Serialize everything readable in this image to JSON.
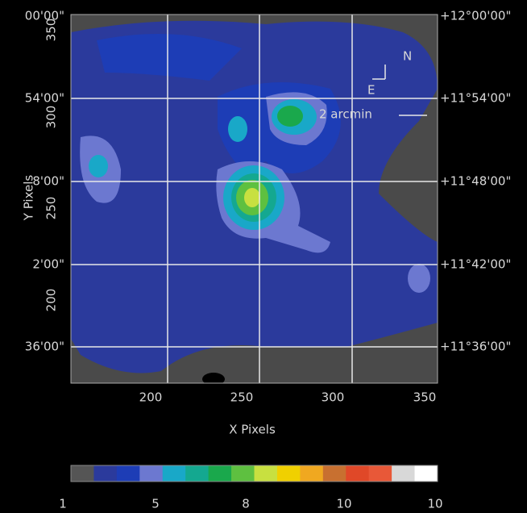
{
  "x_axis": {
    "label": "X Pixels",
    "ticks": [
      "200",
      "250",
      "300",
      "350"
    ]
  },
  "y_axis": {
    "label": "Y Pixels",
    "ticks": [
      "350",
      "300",
      "250",
      "200"
    ]
  },
  "left_ticks": [
    "00'00\"",
    "54'00\"",
    "8'00\"",
    "2'00\"",
    "36'00\""
  ],
  "right_ticks": [
    "+12°00'00\"",
    "+11°54'00\"",
    "+11°48'00\"",
    "+11°42'00\"",
    "+11°36'00\""
  ],
  "annotations": {
    "north": "N",
    "east": "E",
    "scale": "2 arcmin"
  },
  "colorbar": {
    "labels": [
      "1",
      "5",
      "8",
      "10",
      "10"
    ],
    "colors": [
      "#555555",
      "#2b3a9c",
      "#1d3db6",
      "#6c78d0",
      "#19a8c8",
      "#14a890",
      "#1aa84c",
      "#5ec040",
      "#c8e040",
      "#f0d000",
      "#f0a820",
      "#c87030",
      "#e04828",
      "#e85838",
      "#d8d8d8",
      "#ffffff"
    ]
  }
}
